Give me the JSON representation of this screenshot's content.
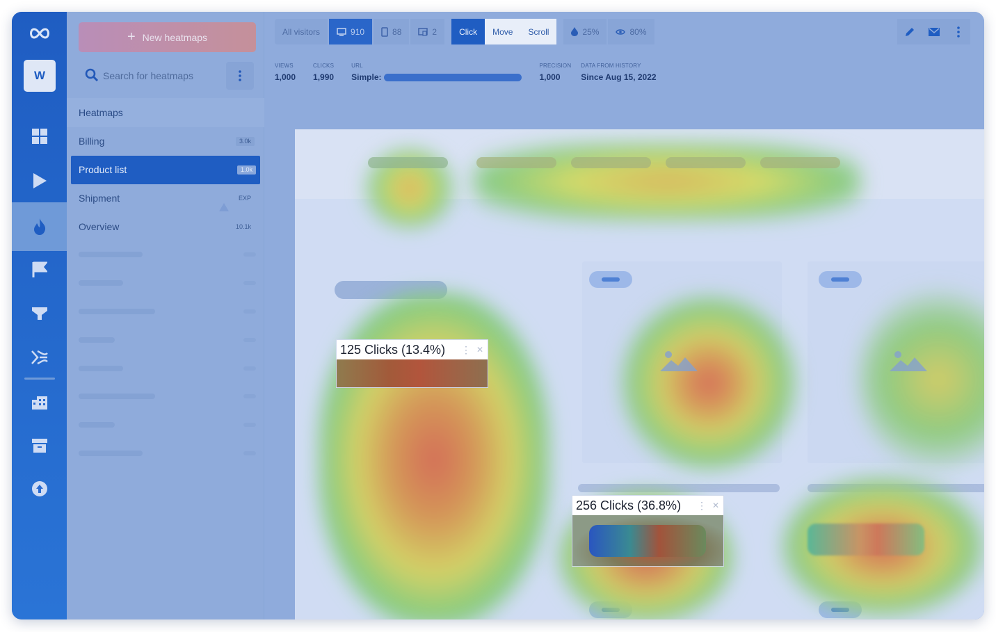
{
  "rail": {
    "workspace": "W",
    "items": [
      "dashboard-icon",
      "play-icon",
      "fire-icon",
      "flag-icon",
      "funnel-icon",
      "feedback-icon",
      "building-icon",
      "archive-icon",
      "upload-icon"
    ],
    "active": "fire-icon"
  },
  "panel": {
    "new_button": "New heatmaps",
    "search_placeholder": "Search for heatmaps",
    "section": "Heatmaps",
    "items": [
      {
        "label": "Billing",
        "badge": "3.0k"
      },
      {
        "label": "Product list",
        "badge": "1.0k",
        "selected": true
      },
      {
        "label": "Shipment",
        "badge": "EXP",
        "warning": true
      },
      {
        "label": "Overview",
        "badge": "10.1k"
      }
    ]
  },
  "toolbar": {
    "visitors": "All visitors",
    "desktop": "910",
    "mobile": "88",
    "tablet": "2",
    "modes": [
      "Click",
      "Move",
      "Scroll"
    ],
    "active_mode": "Click",
    "opacity": "25%",
    "visibility": "80%"
  },
  "stats": {
    "views_label": "VIEWS",
    "views": "1,000",
    "clicks_label": "CLICKS",
    "clicks": "1,990",
    "url_label": "URL",
    "url_prefix": "Simple:",
    "precision_label": "PRECISION",
    "precision": "1,000",
    "history_label": "DATA FROM HISTORY",
    "history": "Since Aug 15, 2022"
  },
  "tooltips": [
    {
      "text": "125 Clicks (13.4%)"
    },
    {
      "text": "256 Clicks (36.8%)"
    }
  ],
  "colors": {
    "primary": "#1f5dc2",
    "overlay": "#93aedc",
    "heat_red": "#e0653d",
    "heat_yellow": "#d8d84f",
    "heat_green": "#8ccf6e"
  }
}
